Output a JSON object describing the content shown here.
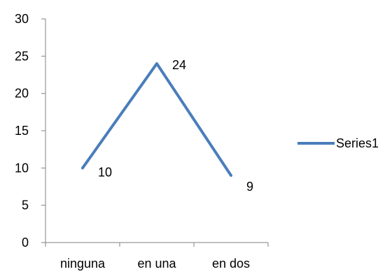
{
  "chart_data": {
    "type": "line",
    "categories": [
      "ninguna",
      "en una",
      "en dos"
    ],
    "series": [
      {
        "name": "Series1",
        "values": [
          10,
          24,
          9
        ],
        "color": "#4A7EBB"
      }
    ],
    "data_labels": [
      "10",
      "24",
      "9"
    ],
    "y_ticks": [
      "0",
      "5",
      "10",
      "15",
      "20",
      "25",
      "30"
    ],
    "ylim": [
      0,
      30
    ],
    "grid": false,
    "legend_position": "right",
    "axis_color": "#808080"
  }
}
